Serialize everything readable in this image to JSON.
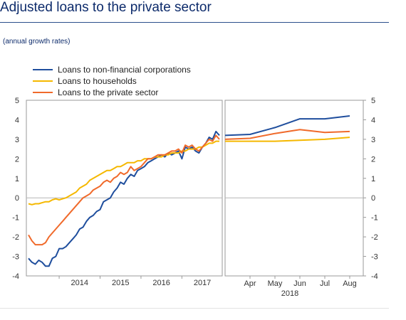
{
  "header": {
    "title": "Adjusted loans to the private sector",
    "subtitle": "(annual growth rates)"
  },
  "chart_data": {
    "type": "line",
    "ylim": [
      -4,
      5
    ],
    "yticks": [
      -4,
      -3,
      -2,
      -1,
      0,
      1,
      2,
      3,
      4,
      5
    ],
    "grid": false,
    "legend_position": "top-left",
    "panels": [
      {
        "x_tick_labels": [
          "2014",
          "2015",
          "2016",
          "2017"
        ],
        "xlim": [
          "2013-04",
          "2017-12"
        ],
        "x": [
          "2013-04",
          "2013-05",
          "2013-06",
          "2013-07",
          "2013-08",
          "2013-09",
          "2013-10",
          "2013-11",
          "2013-12",
          "2014-01",
          "2014-02",
          "2014-03",
          "2014-04",
          "2014-05",
          "2014-06",
          "2014-07",
          "2014-08",
          "2014-09",
          "2014-10",
          "2014-11",
          "2014-12",
          "2015-01",
          "2015-02",
          "2015-03",
          "2015-04",
          "2015-05",
          "2015-06",
          "2015-07",
          "2015-08",
          "2015-09",
          "2015-10",
          "2015-11",
          "2015-12",
          "2016-01",
          "2016-02",
          "2016-03",
          "2016-04",
          "2016-05",
          "2016-06",
          "2016-07",
          "2016-08",
          "2016-09",
          "2016-10",
          "2016-11",
          "2016-12",
          "2017-01",
          "2017-02",
          "2017-03",
          "2017-04",
          "2017-05",
          "2017-06",
          "2017-07",
          "2017-08",
          "2017-09",
          "2017-10",
          "2017-11",
          "2017-12"
        ]
      },
      {
        "x_tick_labels": [
          "Apr",
          "May",
          "Jun",
          "Jul",
          "Aug"
        ],
        "x_group_label": "2018",
        "x": [
          "Mar",
          "Apr",
          "May",
          "Jun",
          "Jul",
          "Aug"
        ]
      }
    ],
    "series": [
      {
        "name": "Loans to non-financial corporations",
        "color": "#1f4e9d",
        "values": [
          -3.1,
          -3.3,
          -3.4,
          -3.2,
          -3.3,
          -3.5,
          -3.5,
          -3.1,
          -3.0,
          -2.6,
          -2.6,
          -2.5,
          -2.3,
          -2.1,
          -1.9,
          -1.6,
          -1.5,
          -1.2,
          -1.0,
          -0.9,
          -0.7,
          -0.6,
          -0.2,
          -0.1,
          0.0,
          0.3,
          0.5,
          0.8,
          0.7,
          1.0,
          1.2,
          1.1,
          1.4,
          1.5,
          1.6,
          1.8,
          1.9,
          2.0,
          2.1,
          2.2,
          2.1,
          2.3,
          2.2,
          2.3,
          2.4,
          2.0,
          2.6,
          2.5,
          2.6,
          2.4,
          2.3,
          2.6,
          2.8,
          3.1,
          3.0,
          3.4,
          3.2
        ],
        "projection": [
          3.2,
          3.25,
          3.6,
          4.05,
          4.05,
          4.2
        ]
      },
      {
        "name": "Loans to households",
        "color": "#f5b800",
        "values": [
          -0.3,
          -0.35,
          -0.3,
          -0.3,
          -0.25,
          -0.2,
          -0.2,
          -0.1,
          -0.05,
          -0.1,
          -0.05,
          0.0,
          0.1,
          0.2,
          0.3,
          0.5,
          0.6,
          0.7,
          0.9,
          1.0,
          1.1,
          1.2,
          1.3,
          1.4,
          1.4,
          1.5,
          1.6,
          1.6,
          1.7,
          1.8,
          1.8,
          1.8,
          1.9,
          1.9,
          2.0,
          2.0,
          2.0,
          2.1,
          2.1,
          2.1,
          2.2,
          2.2,
          2.3,
          2.3,
          2.3,
          2.4,
          2.4,
          2.5,
          2.5,
          2.5,
          2.6,
          2.6,
          2.7,
          2.8,
          2.8,
          2.9,
          2.9
        ],
        "projection": [
          2.9,
          2.9,
          2.9,
          2.95,
          3.0,
          3.1
        ]
      },
      {
        "name": "Loans to the private sector",
        "color": "#f06a2b",
        "values": [
          -1.9,
          -2.2,
          -2.4,
          -2.4,
          -2.4,
          -2.3,
          -2.0,
          -1.8,
          -1.6,
          -1.4,
          -1.2,
          -1.0,
          -0.8,
          -0.6,
          -0.4,
          -0.2,
          0.0,
          0.1,
          0.2,
          0.4,
          0.5,
          0.6,
          0.8,
          0.9,
          0.8,
          1.0,
          1.1,
          1.3,
          1.2,
          1.3,
          1.6,
          1.4,
          1.5,
          1.6,
          1.8,
          2.0,
          2.0,
          2.1,
          2.2,
          2.2,
          2.2,
          2.3,
          2.4,
          2.4,
          2.5,
          2.3,
          2.7,
          2.6,
          2.7,
          2.5,
          2.4,
          2.6,
          2.8,
          3.0,
          2.9,
          3.2,
          3.0
        ],
        "projection": [
          3.0,
          3.05,
          3.3,
          3.5,
          3.35,
          3.4
        ]
      }
    ]
  }
}
